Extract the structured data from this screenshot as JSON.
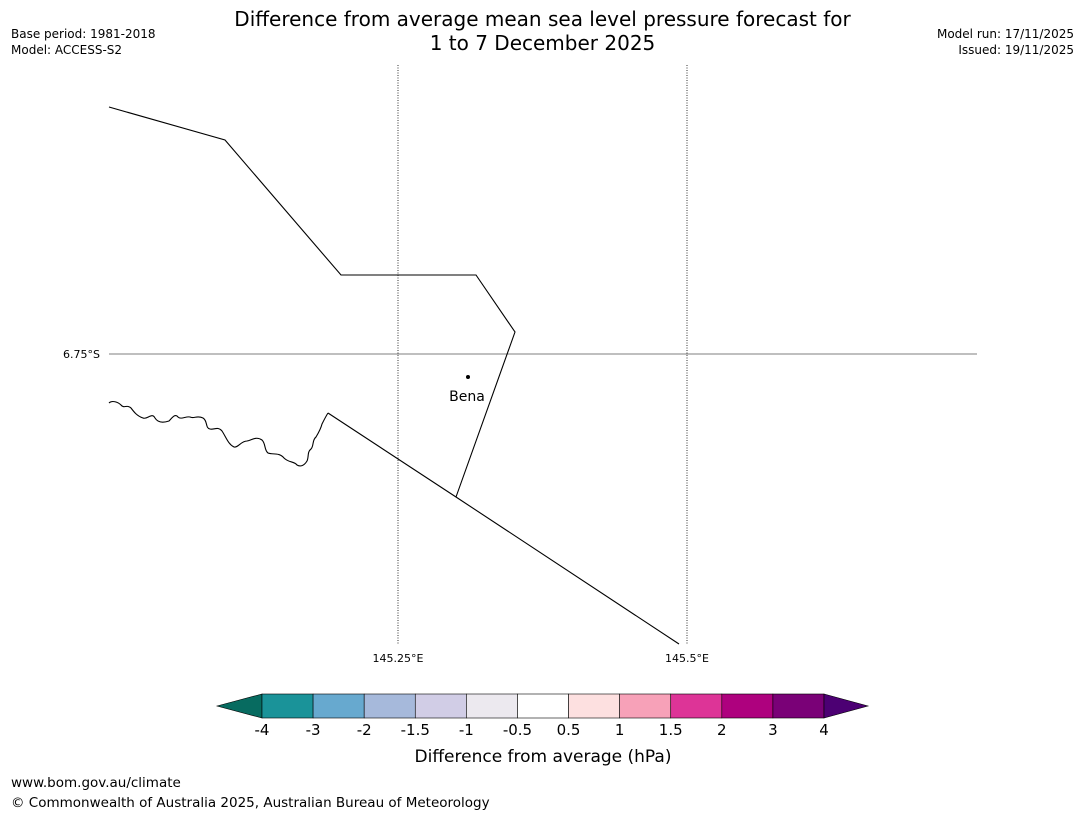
{
  "title_line1": "Difference from average mean sea level pressure forecast for",
  "title_line2": "1 to 7 December 2025",
  "base_period": "Base period: 1981-2018",
  "model": "Model: ACCESS-S2",
  "model_run": "Model run: 17/11/2025",
  "issued": "Issued: 19/11/2025",
  "map": {
    "lat_label": "6.75°S",
    "lon_labels": [
      "145.25°E",
      "145.5°E"
    ],
    "place": {
      "name": "Bena"
    }
  },
  "colorbar": {
    "title": "Difference from average (hPa)",
    "tick_labels": [
      "-4",
      "-3",
      "-2",
      "-1.5",
      "-1",
      "-0.5",
      "0.5",
      "1",
      "1.5",
      "2",
      "3",
      "4"
    ],
    "under_color": "#076b60",
    "over_color": "#4c0073",
    "bin_colors": [
      "#1a9399",
      "#67a9cf",
      "#a6b9db",
      "#d1cde6",
      "#ece9ef",
      "#ffffff",
      "#fde0e0",
      "#f7a1b8",
      "#dd3497",
      "#ae017e",
      "#7a0177"
    ]
  },
  "footer": {
    "url": "www.bom.gov.au/climate",
    "copyright": "© Commonwealth of Australia 2025, Australian Bureau of Meteorology"
  }
}
